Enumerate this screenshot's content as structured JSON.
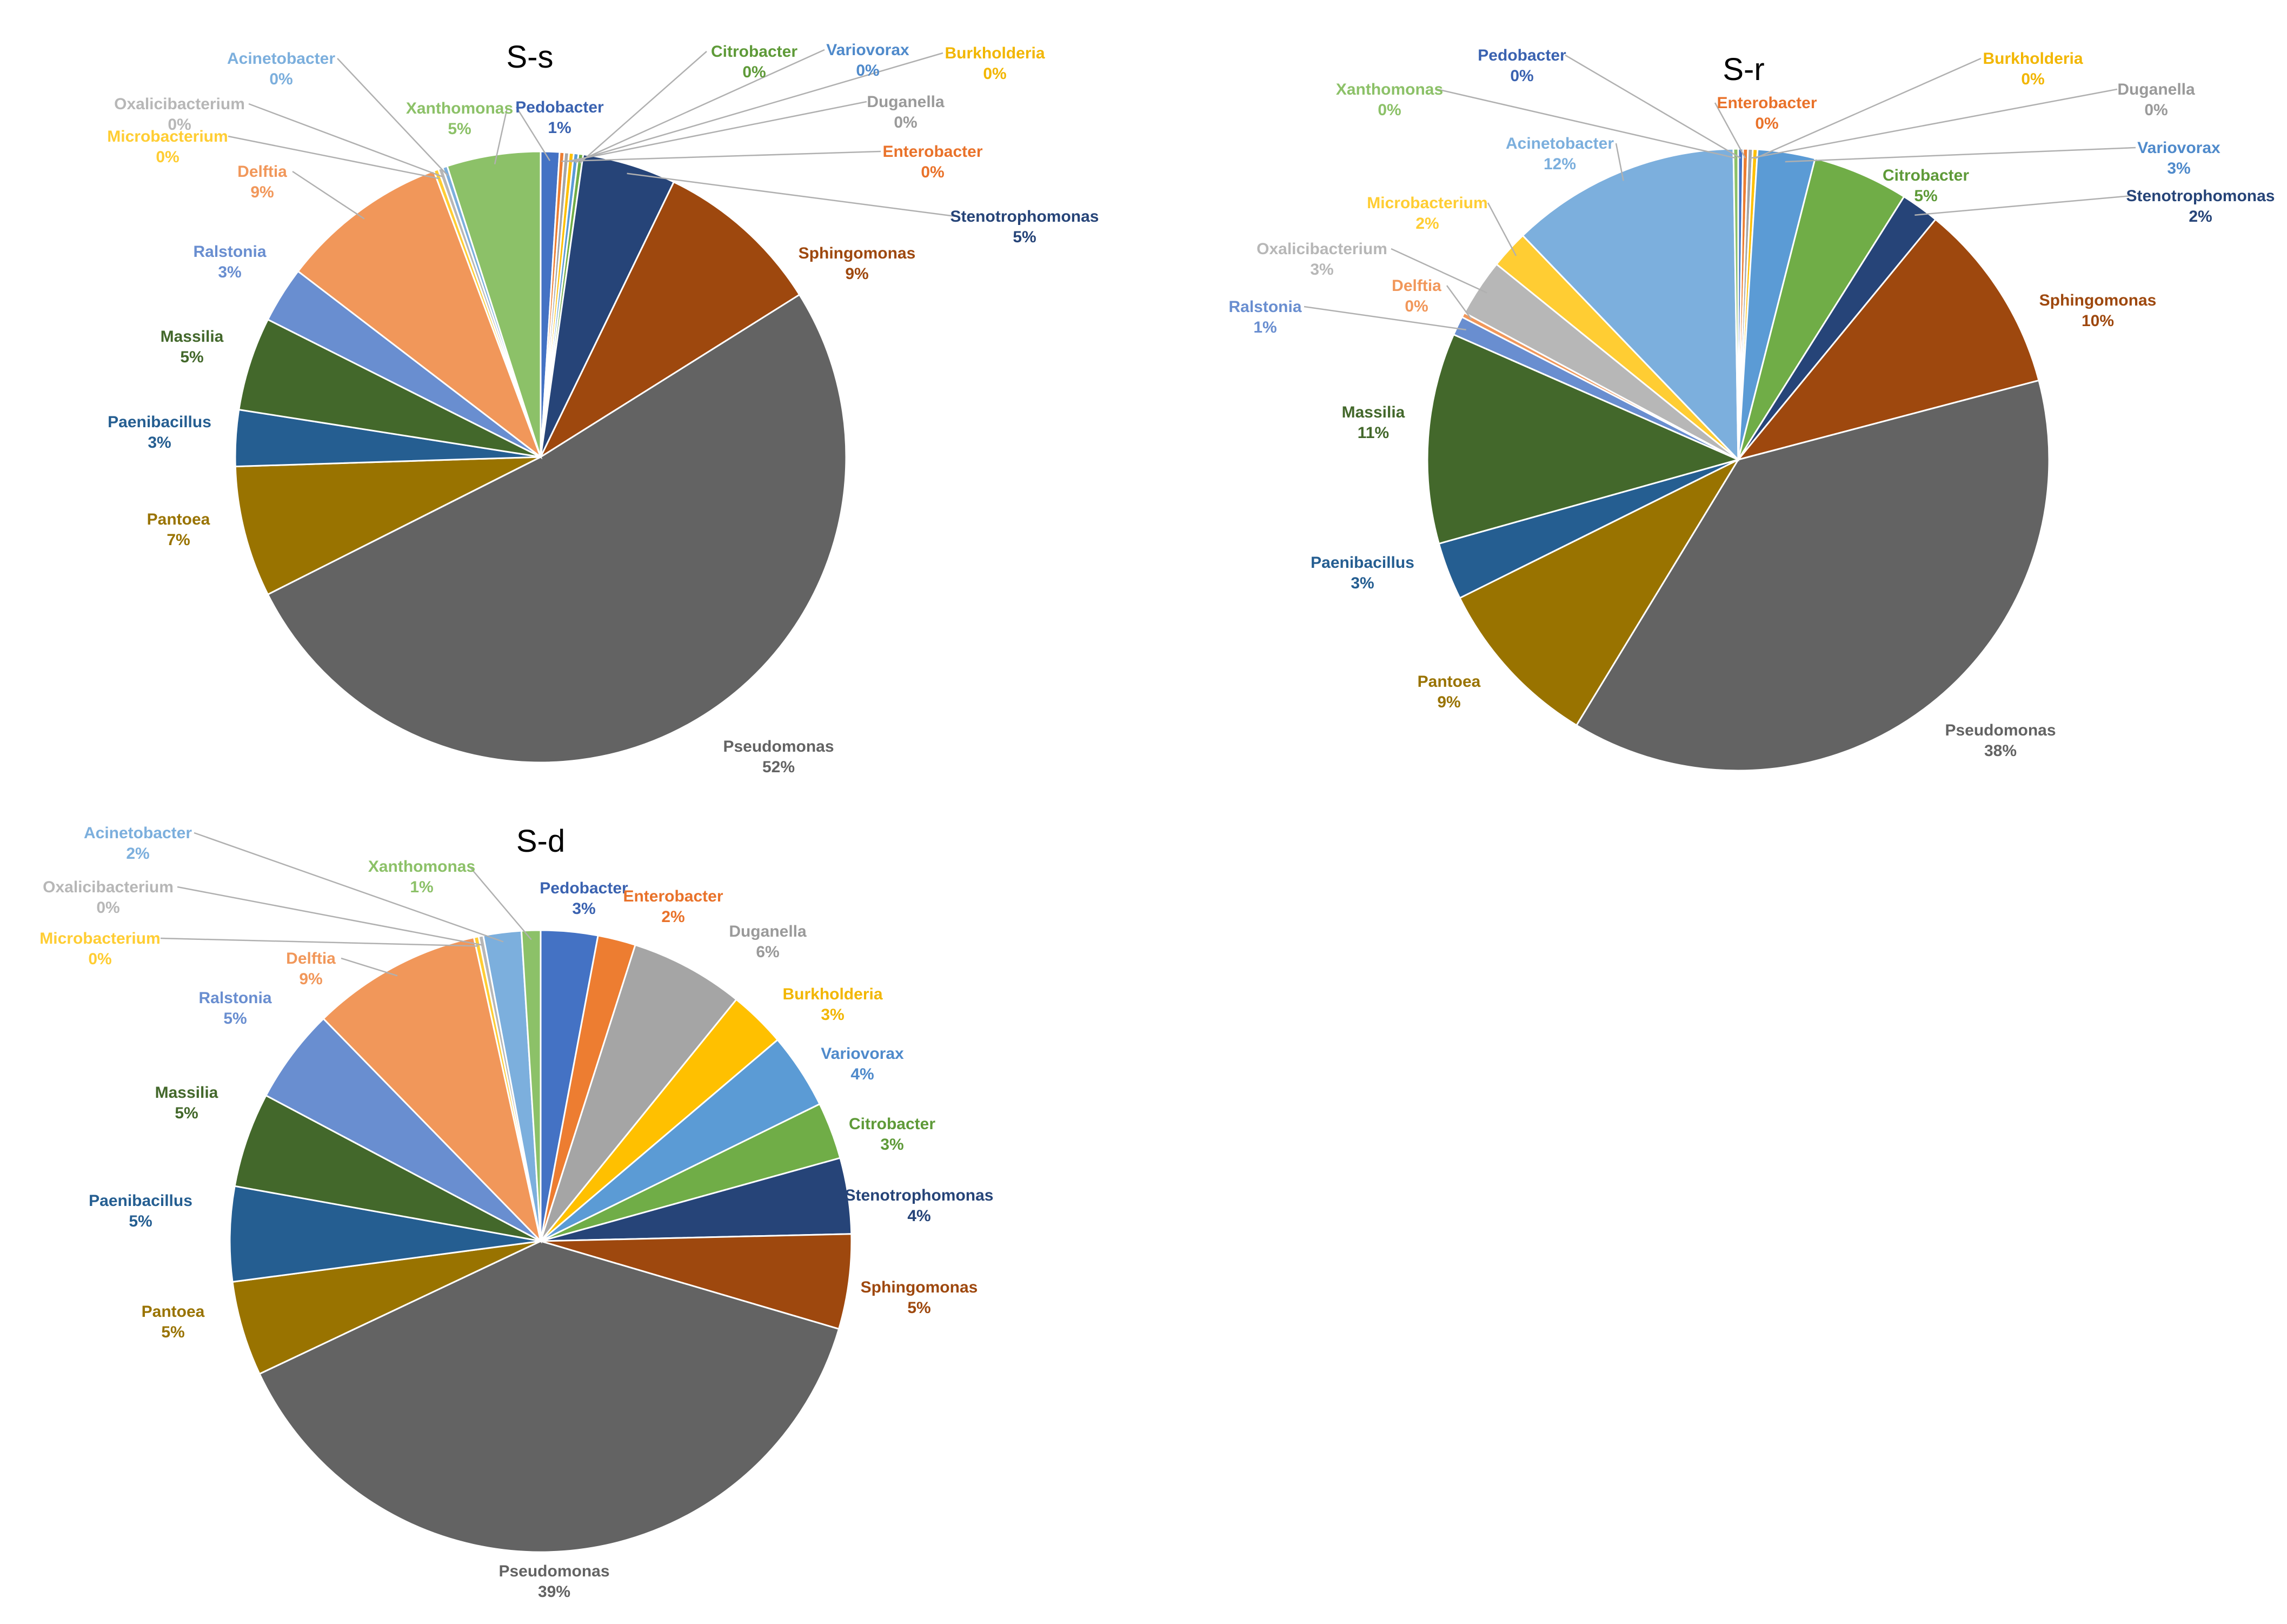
{
  "chart_data": [
    {
      "type": "pie",
      "title": "S-s",
      "slices": [
        {
          "label": "Pedobacter",
          "value": 1,
          "value_label": "1%",
          "color": "#4472C4"
        },
        {
          "label": "Enterobacter",
          "value": 0,
          "value_label": "0%",
          "color": "#ED7D31"
        },
        {
          "label": "Duganella",
          "value": 0,
          "value_label": "0%",
          "color": "#A5A5A5"
        },
        {
          "label": "Burkholderia",
          "value": 0,
          "value_label": "0%",
          "color": "#FFC000"
        },
        {
          "label": "Variovorax",
          "value": 0,
          "value_label": "0%",
          "color": "#5B9BD5"
        },
        {
          "label": "Citrobacter",
          "value": 0,
          "value_label": "0%",
          "color": "#70AD47"
        },
        {
          "label": "Stenotrophomonas",
          "value": 5,
          "value_label": "5%",
          "color": "#264478"
        },
        {
          "label": "Sphingomonas",
          "value": 9,
          "value_label": "9%",
          "color": "#9E480E"
        },
        {
          "label": "Pseudomonas",
          "value": 52,
          "value_label": "52%",
          "color": "#636363"
        },
        {
          "label": "Pantoea",
          "value": 7,
          "value_label": "7%",
          "color": "#997300"
        },
        {
          "label": "Paenibacillus",
          "value": 3,
          "value_label": "3%",
          "color": "#255E91"
        },
        {
          "label": "Massilia",
          "value": 5,
          "value_label": "5%",
          "color": "#43682B"
        },
        {
          "label": "Ralstonia",
          "value": 3,
          "value_label": "3%",
          "color": "#698ED0"
        },
        {
          "label": "Delftia",
          "value": 9,
          "value_label": "9%",
          "color": "#F1975A"
        },
        {
          "label": "Microbacterium",
          "value": 0,
          "value_label": "0%",
          "color": "#FFCD33"
        },
        {
          "label": "Oxalicibacterium",
          "value": 0,
          "value_label": "0%",
          "color": "#B7B7B7"
        },
        {
          "label": "Acinetobacter",
          "value": 0,
          "value_label": "0%",
          "color": "#7CAFDD"
        },
        {
          "label": "Xanthomonas",
          "value": 5,
          "value_label": "5%",
          "color": "#8CC168"
        }
      ]
    },
    {
      "type": "pie",
      "title": "S-r",
      "slices": [
        {
          "label": "Pedobacter",
          "value": 0,
          "value_label": "0%",
          "color": "#4472C4"
        },
        {
          "label": "Enterobacter",
          "value": 0,
          "value_label": "0%",
          "color": "#ED7D31"
        },
        {
          "label": "Duganella",
          "value": 0,
          "value_label": "0%",
          "color": "#A5A5A5"
        },
        {
          "label": "Burkholderia",
          "value": 0,
          "value_label": "0%",
          "color": "#FFC000"
        },
        {
          "label": "Variovorax",
          "value": 3,
          "value_label": "3%",
          "color": "#5B9BD5"
        },
        {
          "label": "Citrobacter",
          "value": 5,
          "value_label": "5%",
          "color": "#70AD47"
        },
        {
          "label": "Stenotrophomonas",
          "value": 2,
          "value_label": "2%",
          "color": "#264478"
        },
        {
          "label": "Sphingomonas",
          "value": 10,
          "value_label": "10%",
          "color": "#9E480E"
        },
        {
          "label": "Pseudomonas",
          "value": 38,
          "value_label": "38%",
          "color": "#636363"
        },
        {
          "label": "Pantoea",
          "value": 9,
          "value_label": "9%",
          "color": "#997300"
        },
        {
          "label": "Paenibacillus",
          "value": 3,
          "value_label": "3%",
          "color": "#255E91"
        },
        {
          "label": "Massilia",
          "value": 11,
          "value_label": "11%",
          "color": "#43682B"
        },
        {
          "label": "Ralstonia",
          "value": 1,
          "value_label": "1%",
          "color": "#698ED0"
        },
        {
          "label": "Delftia",
          "value": 0,
          "value_label": "0%",
          "color": "#F1975A"
        },
        {
          "label": "Oxalicibacterium",
          "value": 3,
          "value_label": "3%",
          "color": "#B7B7B7"
        },
        {
          "label": "Microbacterium",
          "value": 2,
          "value_label": "2%",
          "color": "#FFCD33"
        },
        {
          "label": "Acinetobacter",
          "value": 12,
          "value_label": "12%",
          "color": "#7CAFDD"
        },
        {
          "label": "Xanthomonas",
          "value": 0,
          "value_label": "0%",
          "color": "#8CC168"
        }
      ]
    },
    {
      "type": "pie",
      "title": "S-d",
      "slices": [
        {
          "label": "Pedobacter",
          "value": 3,
          "value_label": "3%",
          "color": "#4472C4"
        },
        {
          "label": "Enterobacter",
          "value": 2,
          "value_label": "2%",
          "color": "#ED7D31"
        },
        {
          "label": "Duganella",
          "value": 6,
          "value_label": "6%",
          "color": "#A5A5A5"
        },
        {
          "label": "Burkholderia",
          "value": 3,
          "value_label": "3%",
          "color": "#FFC000"
        },
        {
          "label": "Variovorax",
          "value": 4,
          "value_label": "4%",
          "color": "#5B9BD5"
        },
        {
          "label": "Citrobacter",
          "value": 3,
          "value_label": "3%",
          "color": "#70AD47"
        },
        {
          "label": "Stenotrophomonas",
          "value": 4,
          "value_label": "4%",
          "color": "#264478"
        },
        {
          "label": "Sphingomonas",
          "value": 5,
          "value_label": "5%",
          "color": "#9E480E"
        },
        {
          "label": "Pseudomonas",
          "value": 39,
          "value_label": "39%",
          "color": "#636363"
        },
        {
          "label": "Pantoea",
          "value": 5,
          "value_label": "5%",
          "color": "#997300"
        },
        {
          "label": "Paenibacillus",
          "value": 5,
          "value_label": "5%",
          "color": "#255E91"
        },
        {
          "label": "Massilia",
          "value": 5,
          "value_label": "5%",
          "color": "#43682B"
        },
        {
          "label": "Ralstonia",
          "value": 5,
          "value_label": "5%",
          "color": "#698ED0"
        },
        {
          "label": "Delftia",
          "value": 9,
          "value_label": "9%",
          "color": "#F1975A"
        },
        {
          "label": "Microbacterium",
          "value": 0,
          "value_label": "0%",
          "color": "#FFCD33"
        },
        {
          "label": "Oxalicibacterium",
          "value": 0,
          "value_label": "0%",
          "color": "#B7B7B7"
        },
        {
          "label": "Acinetobacter",
          "value": 2,
          "value_label": "2%",
          "color": "#7CAFDD"
        },
        {
          "label": "Xanthomonas",
          "value": 1,
          "value_label": "1%",
          "color": "#8CC168"
        }
      ]
    }
  ]
}
